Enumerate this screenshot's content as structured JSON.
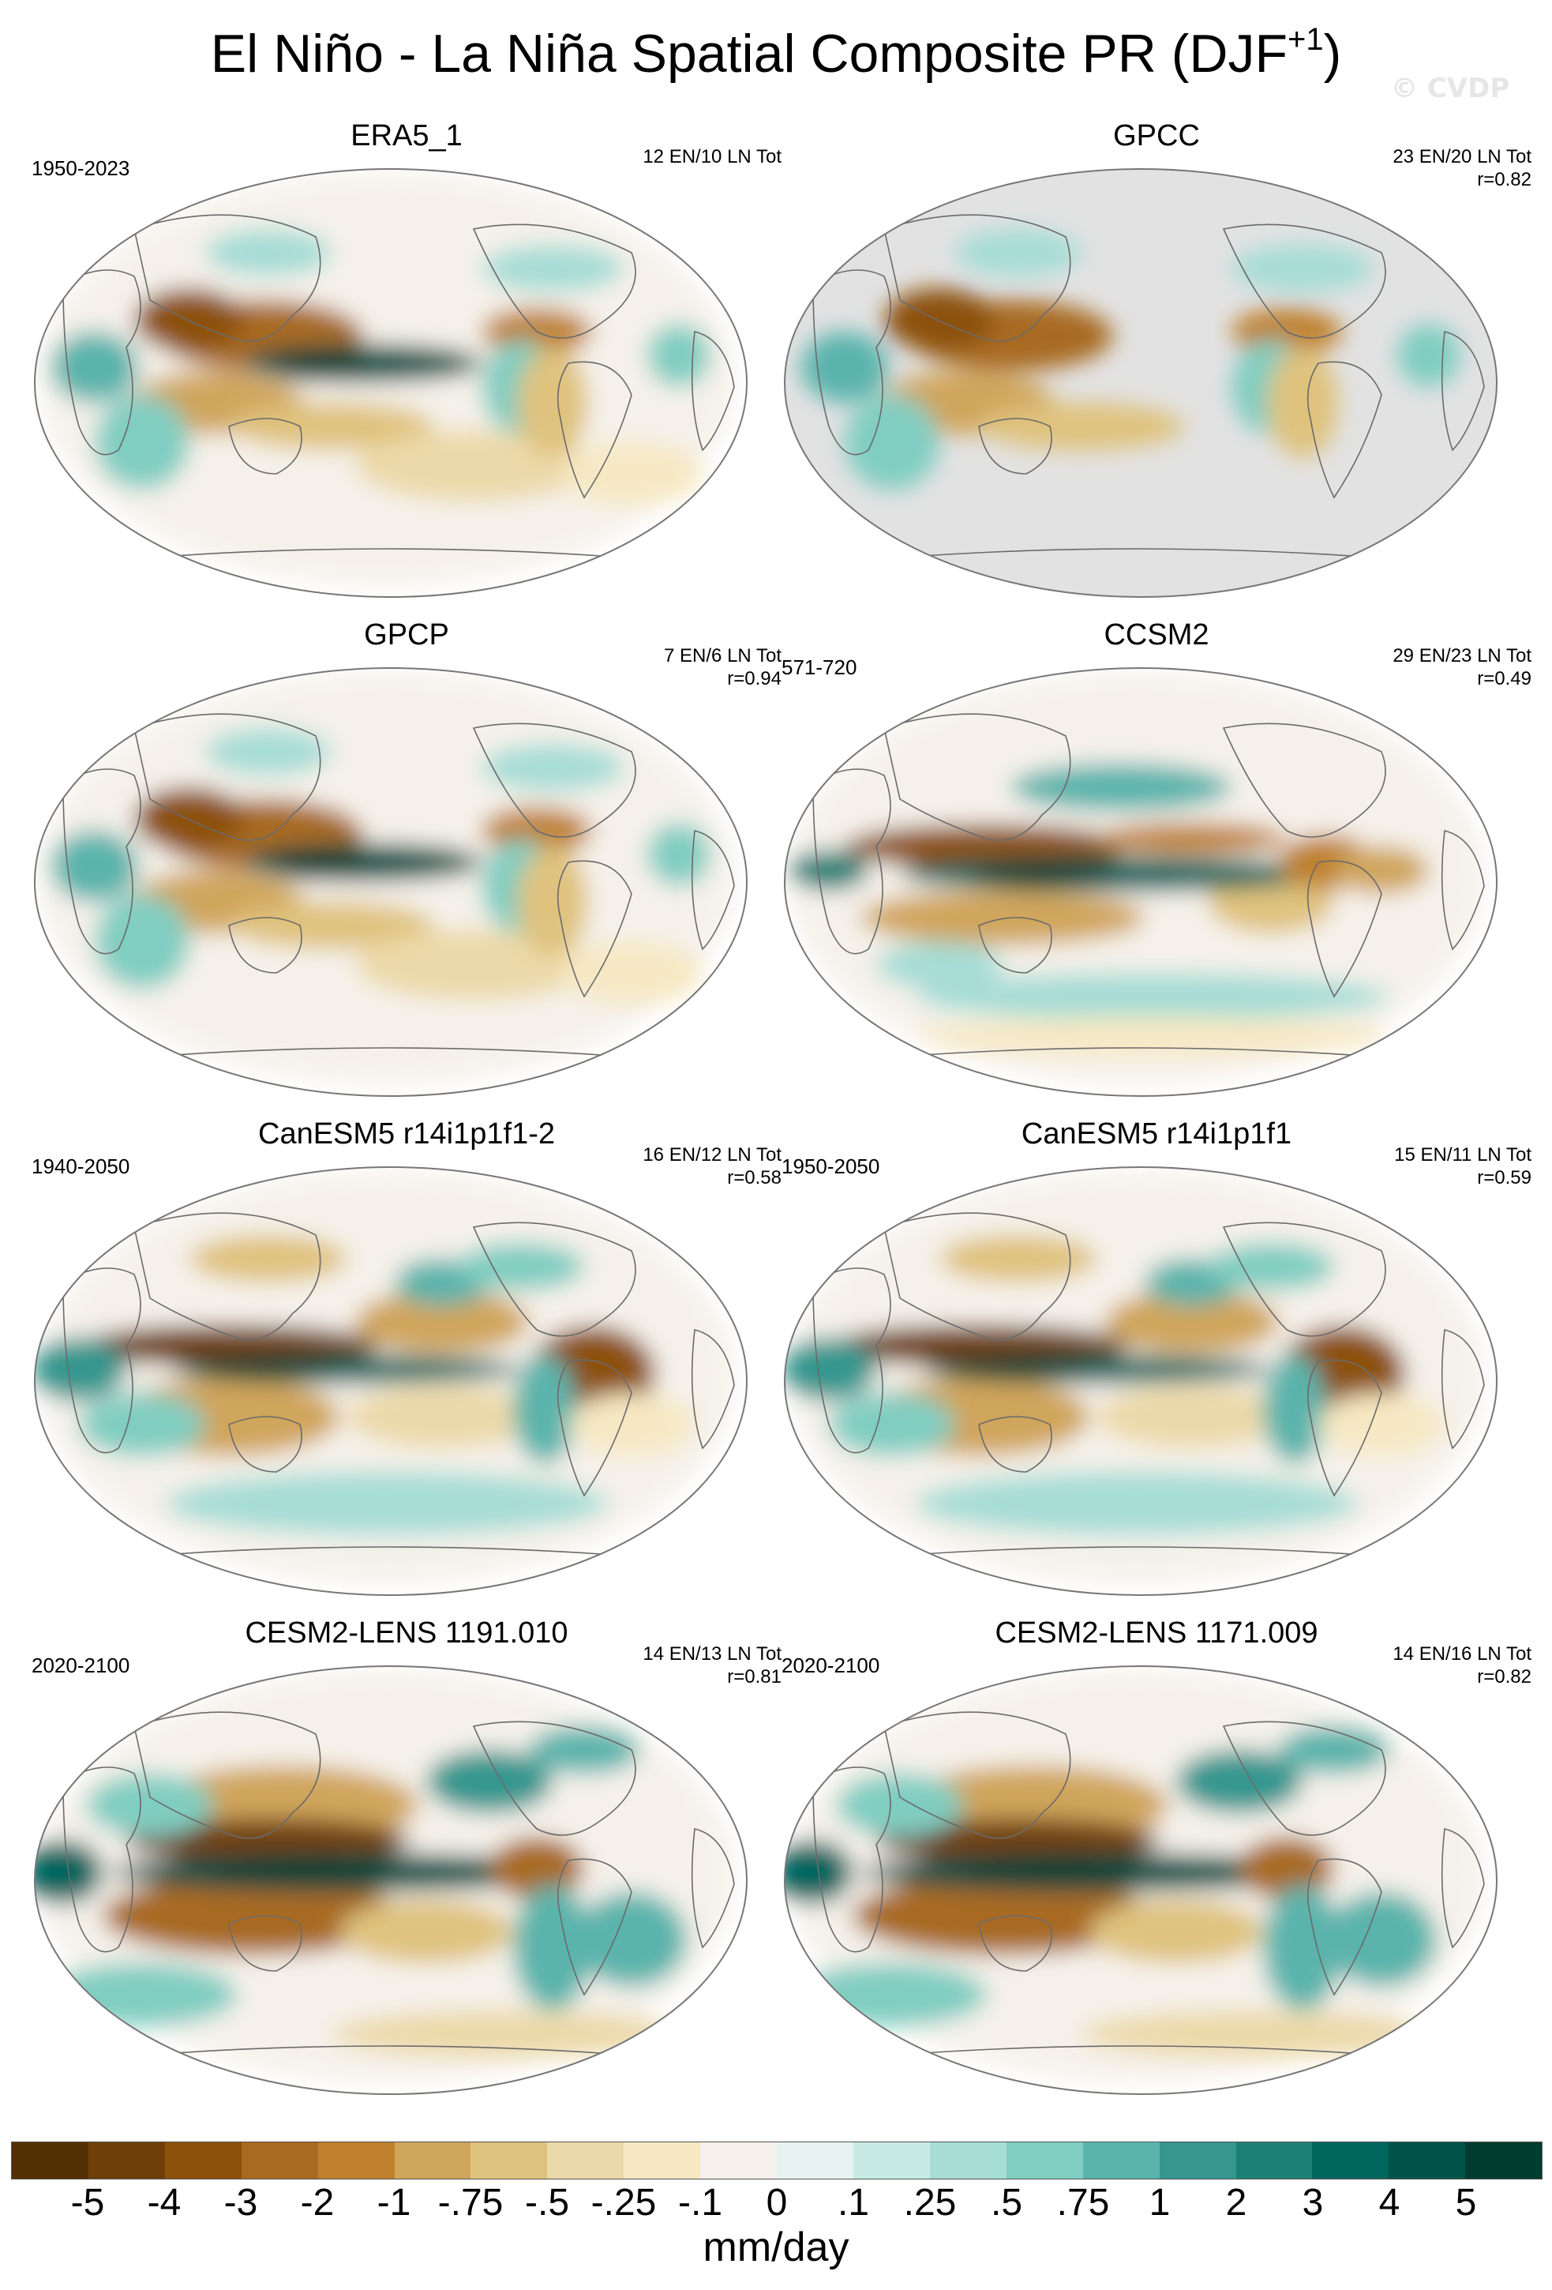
{
  "title": {
    "main": "El Niño - La Niña Spatial Composite PR (DJF",
    "superscript": "+1",
    "close": ")"
  },
  "watermark": "© CVDP",
  "panels": [
    {
      "title": "ERA5_1",
      "years": "1950-2023",
      "stats_line1": "12 EN/10 LN Tot",
      "stats_line2": "",
      "land_only": false,
      "pattern": "obs"
    },
    {
      "title": "GPCC",
      "years": "",
      "stats_line1": "23 EN/20 LN Tot",
      "stats_line2": "r=0.82",
      "land_only": true,
      "pattern": "obs"
    },
    {
      "title": "GPCP",
      "years": "",
      "stats_line1": "7 EN/6 LN Tot",
      "stats_line2": "r=0.94",
      "land_only": false,
      "pattern": "obs"
    },
    {
      "title": "CCSM2",
      "years": "571-720",
      "stats_line1": "29 EN/23 LN Tot",
      "stats_line2": "r=0.49",
      "land_only": false,
      "pattern": "ccsm"
    },
    {
      "title": "CanESM5 r14i1p1f1-2",
      "years": "1940-2050",
      "stats_line1": "16 EN/12 LN Tot",
      "stats_line2": "r=0.58",
      "land_only": false,
      "pattern": "can"
    },
    {
      "title": "CanESM5 r14i1p1f1",
      "years": "1950-2050",
      "stats_line1": "15 EN/11 LN Tot",
      "stats_line2": "r=0.59",
      "land_only": false,
      "pattern": "can"
    },
    {
      "title": "CESM2-LENS 1191.010",
      "years": "2020-2100",
      "stats_line1": "14 EN/13 LN Tot",
      "stats_line2": "r=0.81",
      "land_only": false,
      "pattern": "cesm"
    },
    {
      "title": "CESM2-LENS 1171.009",
      "years": "2020-2100",
      "stats_line1": "14 EN/16 LN Tot",
      "stats_line2": "r=0.82",
      "land_only": false,
      "pattern": "cesm"
    }
  ],
  "colorbar": {
    "labels": [
      "-5",
      "-4",
      "-3",
      "-2",
      "-1",
      "-.75",
      "-.5",
      "-.25",
      "-.1",
      "0",
      ".1",
      ".25",
      ".5",
      ".75",
      "1",
      "2",
      "3",
      "4",
      "5"
    ],
    "colors": [
      "#543005",
      "#6f3f0a",
      "#8c510a",
      "#a86a20",
      "#bf812d",
      "#d0a55c",
      "#dfc27d",
      "#ecd9a9",
      "#f6e8c3",
      "#f5f1ea",
      "#e6f3f1",
      "#c7eae5",
      "#a6ddd5",
      "#80cdc1",
      "#5ab4ac",
      "#35978f",
      "#1d8076",
      "#01665e",
      "#01534a",
      "#003c30"
    ],
    "units": "mm/day"
  }
}
